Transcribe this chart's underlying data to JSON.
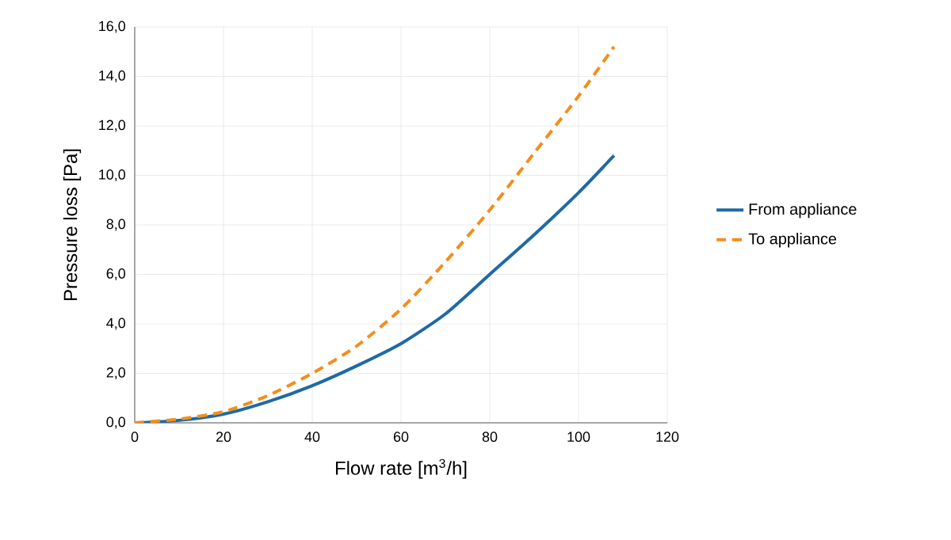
{
  "chart_data": {
    "type": "line",
    "xlabel": "Flow rate [m$^{3}$/h]",
    "ylabel": "Pressure loss [Pa]",
    "x": [
      0,
      10,
      20,
      30,
      40,
      50,
      60,
      70,
      80,
      90,
      100,
      108
    ],
    "series": [
      {
        "name": "From appliance",
        "color": "#1f6aa5",
        "line_style": "solid",
        "values": [
          0,
          0.1,
          0.35,
          0.85,
          1.5,
          2.3,
          3.2,
          4.4,
          6.0,
          7.6,
          9.3,
          10.8
        ]
      },
      {
        "name": "To appliance",
        "color": "#f28e1c",
        "line_style": "dashed",
        "values": [
          0,
          0.15,
          0.45,
          1.1,
          2.0,
          3.1,
          4.6,
          6.5,
          8.6,
          10.9,
          13.2,
          15.2
        ]
      }
    ],
    "xlim": [
      0,
      120
    ],
    "xticks": [
      0,
      20,
      40,
      60,
      80,
      100,
      120
    ],
    "ylim": [
      0,
      16
    ],
    "yticks": [
      {
        "value": 0,
        "label": "0,0"
      },
      {
        "value": 2,
        "label": "2,0"
      },
      {
        "value": 4,
        "label": "4,0"
      },
      {
        "value": 6,
        "label": "6,0"
      },
      {
        "value": 8,
        "label": "8,0"
      },
      {
        "value": 10,
        "label": "10,0"
      },
      {
        "value": 12,
        "label": "12,0"
      },
      {
        "value": 14,
        "label": "14,0"
      },
      {
        "value": 16,
        "label": "16,0"
      }
    ],
    "grid": true,
    "legend": "right",
    "marker": "none"
  }
}
